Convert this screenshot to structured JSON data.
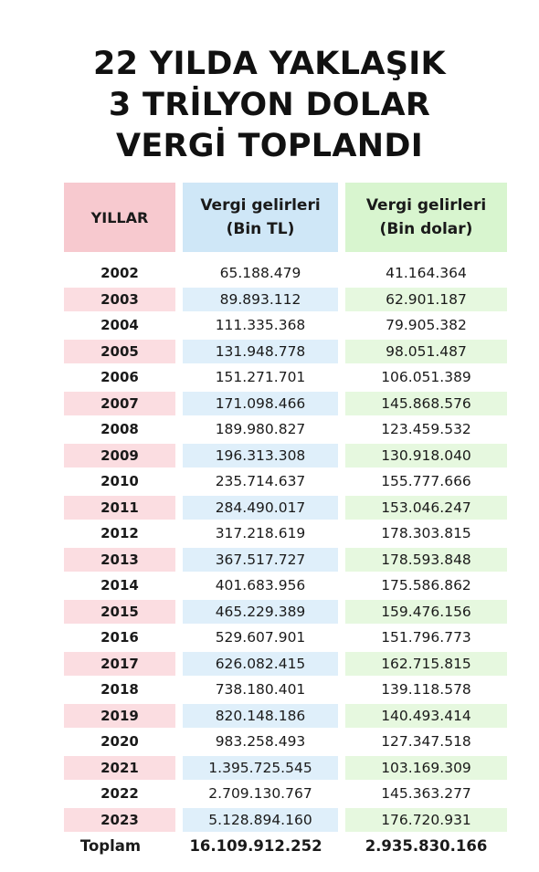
{
  "title": {
    "line1": "22 YILDA YAKLAŞIK",
    "line2": "3 TRİLYON DOLAR",
    "line3": "VERGİ TOPLANDI"
  },
  "headers": {
    "year": "YILLAR",
    "tl_line1": "Vergi gelirleri",
    "tl_line2": "(Bin TL)",
    "usd_line1": "Vergi gelirleri",
    "usd_line2": "(Bin dolar)"
  },
  "rows": [
    {
      "year": "2002",
      "tl": "65.188.479",
      "usd": "41.164.364"
    },
    {
      "year": "2003",
      "tl": "89.893.112",
      "usd": "62.901.187"
    },
    {
      "year": "2004",
      "tl": "111.335.368",
      "usd": "79.905.382"
    },
    {
      "year": "2005",
      "tl": "131.948.778",
      "usd": "98.051.487"
    },
    {
      "year": "2006",
      "tl": "151.271.701",
      "usd": "106.051.389"
    },
    {
      "year": "2007",
      "tl": "171.098.466",
      "usd": "145.868.576"
    },
    {
      "year": "2008",
      "tl": "189.980.827",
      "usd": "123.459.532"
    },
    {
      "year": "2009",
      "tl": "196.313.308",
      "usd": "130.918.040"
    },
    {
      "year": "2010",
      "tl": "235.714.637",
      "usd": "155.777.666"
    },
    {
      "year": "2011",
      "tl": "284.490.017",
      "usd": "153.046.247"
    },
    {
      "year": "2012",
      "tl": "317.218.619",
      "usd": "178.303.815"
    },
    {
      "year": "2013",
      "tl": "367.517.727",
      "usd": "178.593.848"
    },
    {
      "year": "2014",
      "tl": "401.683.956",
      "usd": "175.586.862"
    },
    {
      "year": "2015",
      "tl": "465.229.389",
      "usd": "159.476.156"
    },
    {
      "year": "2016",
      "tl": "529.607.901",
      "usd": "151.796.773"
    },
    {
      "year": "2017",
      "tl": "626.082.415",
      "usd": "162.715.815"
    },
    {
      "year": "2018",
      "tl": "738.180.401",
      "usd": "139.118.578"
    },
    {
      "year": "2019",
      "tl": "820.148.186",
      "usd": "140.493.414"
    },
    {
      "year": "2020",
      "tl": "983.258.493",
      "usd": "127.347.518"
    },
    {
      "year": "2021",
      "tl": "1.395.725.545",
      "usd": "103.169.309"
    },
    {
      "year": "2022",
      "tl": "2.709.130.767",
      "usd": "145.363.277"
    },
    {
      "year": "2023",
      "tl": "5.128.894.160",
      "usd": "176.720.931"
    }
  ],
  "total": {
    "label": "Toplam",
    "tl": "16.109.912.252",
    "usd": "2.935.830.166"
  },
  "colors": {
    "year_header": "#f7c9cf",
    "tl_header": "#cfe7f7",
    "usd_header": "#d8f5cf"
  }
}
